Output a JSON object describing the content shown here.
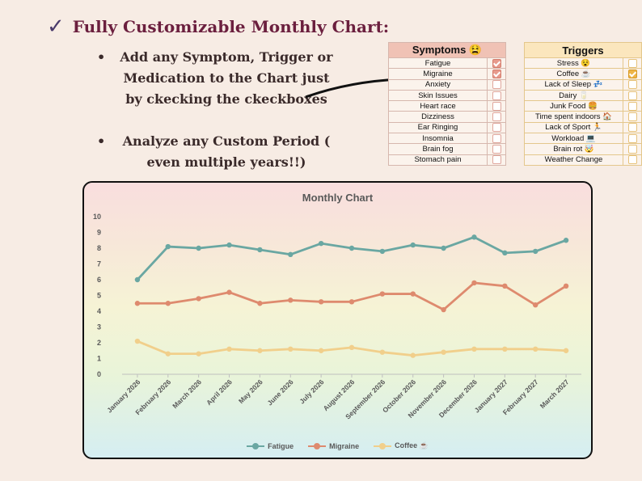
{
  "headline": {
    "check": "✓",
    "text": "Fully Customizable Monthly Chart:"
  },
  "bullets": [
    {
      "marker": "•",
      "text": "Add any Symptom, Trigger or Medication to the Chart just by ckecking the ckeckboxes"
    },
    {
      "marker": "•",
      "text": "Analyze any Custom Period ( even multiple years!!)"
    }
  ],
  "symptoms": {
    "title": "Symptoms 😫",
    "items": [
      {
        "label": "Fatigue",
        "checked": true
      },
      {
        "label": "Migraine",
        "checked": true
      },
      {
        "label": "Anxiety",
        "checked": false
      },
      {
        "label": "Skin Issues",
        "checked": false
      },
      {
        "label": "Heart race",
        "checked": false
      },
      {
        "label": "Dizziness",
        "checked": false
      },
      {
        "label": "Ear Ringing",
        "checked": false
      },
      {
        "label": "Insomnia",
        "checked": false
      },
      {
        "label": "Brain fog",
        "checked": false
      },
      {
        "label": "Stomach pain",
        "checked": false
      }
    ]
  },
  "triggers": {
    "title": "Triggers",
    "items": [
      {
        "label": "Stress 😵",
        "checked": false
      },
      {
        "label": "Coffee ☕",
        "checked": true
      },
      {
        "label": "Lack of Sleep 💤",
        "checked": false
      },
      {
        "label": "Dairy 🥛",
        "checked": false
      },
      {
        "label": "Junk Food 🍔",
        "checked": false
      },
      {
        "label": "Time spent indoors 🏠",
        "checked": false
      },
      {
        "label": "Lack of Sport 🏃",
        "checked": false
      },
      {
        "label": "Workload 💻",
        "checked": false
      },
      {
        "label": "Brain rot 🤯",
        "checked": false
      },
      {
        "label": "Weather Change",
        "checked": false
      }
    ]
  },
  "chart_data": {
    "type": "line",
    "title": "Monthly Chart",
    "categories": [
      "January 2026",
      "February 2026",
      "March 2026",
      "April 2026",
      "May 2026",
      "June 2026",
      "July 2026",
      "August 2026",
      "September 2026",
      "October 2026",
      "November 2026",
      "December 2026",
      "January 2027",
      "February 2027",
      "March 2027"
    ],
    "ylim": [
      0,
      10
    ],
    "yticks": [
      "0",
      "1",
      "2",
      "3",
      "4",
      "5",
      "6",
      "7",
      "8",
      "9",
      "10"
    ],
    "series": [
      {
        "name": "Fatigue",
        "color": "#6aa7a2",
        "values": [
          6.0,
          8.1,
          8.0,
          8.2,
          7.9,
          7.6,
          8.3,
          8.0,
          7.8,
          8.2,
          8.0,
          8.7,
          7.7,
          7.8,
          8.5
        ]
      },
      {
        "name": "Migraine",
        "color": "#de8a6e",
        "values": [
          4.5,
          4.5,
          4.8,
          5.2,
          4.5,
          4.7,
          4.6,
          4.6,
          5.1,
          5.1,
          4.1,
          5.8,
          5.6,
          4.4,
          5.6
        ]
      },
      {
        "name": "Coffee ☕",
        "color": "#f1cf8b",
        "values": [
          2.1,
          1.3,
          1.3,
          1.6,
          1.5,
          1.6,
          1.5,
          1.7,
          1.4,
          1.2,
          1.4,
          1.6,
          1.6,
          1.6,
          1.5
        ]
      }
    ],
    "grid": false,
    "legend": "bottom"
  }
}
